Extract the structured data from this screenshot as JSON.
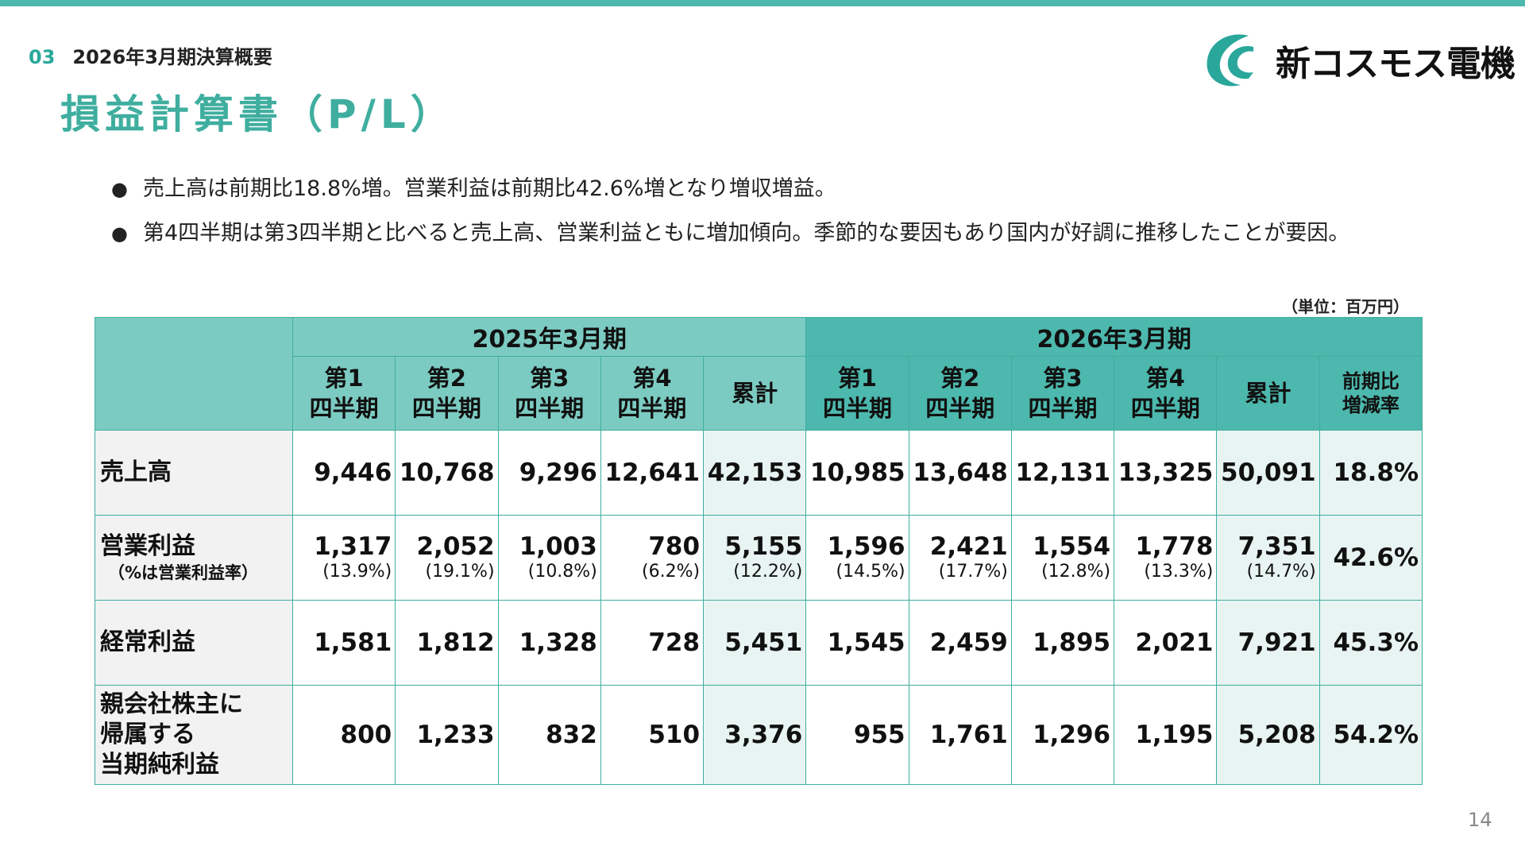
{
  "header": {
    "section_number": "03",
    "section_title": "2026年3月期決算概要",
    "page_title": "損益計算書（P/L）",
    "company_name": "新コスモス電機",
    "brand_color": "#4db8ad"
  },
  "bullets": [
    "売上高は前期比18.8%増。営業利益は前期比42.6%増となり増収増益。",
    "第4四半期は第3四半期と比べると売上高、営業利益ともに増加傾向。季節的な要因もあり国内が好調に推移したことが要因。"
  ],
  "unit_note": "（単位：百万円）",
  "table": {
    "period_headers": [
      "2025年3月期",
      "2026年3月期"
    ],
    "column_headers": [
      [
        "第1",
        "四半期"
      ],
      [
        "第2",
        "四半期"
      ],
      [
        "第3",
        "四半期"
      ],
      [
        "第4",
        "四半期"
      ],
      [
        "累計"
      ],
      [
        "第1",
        "四半期"
      ],
      [
        "第2",
        "四半期"
      ],
      [
        "第3",
        "四半期"
      ],
      [
        "第4",
        "四半期"
      ],
      [
        "累計"
      ],
      [
        "前期比",
        "増減率"
      ]
    ],
    "rows": [
      {
        "label": [
          "売上高"
        ],
        "sublabel": "",
        "values": [
          "9,446",
          "10,768",
          "9,296",
          "12,641",
          "42,153",
          "10,985",
          "13,648",
          "12,131",
          "13,325",
          "50,091",
          "18.8%"
        ],
        "margins": []
      },
      {
        "label": [
          "営業利益"
        ],
        "sublabel": "（%は営業利益率）",
        "values": [
          "1,317",
          "2,052",
          "1,003",
          "780",
          "5,155",
          "1,596",
          "2,421",
          "1,554",
          "1,778",
          "7,351",
          "42.6%"
        ],
        "margins": [
          "(13.9%)",
          "(19.1%)",
          "(10.8%)",
          "(6.2%)",
          "(12.2%)",
          "(14.5%)",
          "(17.7%)",
          "(12.8%)",
          "(13.3%)",
          "(14.7%)"
        ]
      },
      {
        "label": [
          "経常利益"
        ],
        "sublabel": "",
        "values": [
          "1,581",
          "1,812",
          "1,328",
          "728",
          "5,451",
          "1,545",
          "2,459",
          "1,895",
          "2,021",
          "7,921",
          "45.3%"
        ],
        "margins": []
      },
      {
        "label": [
          "親会社株主に",
          "帰属する",
          "当期純利益"
        ],
        "sublabel": "",
        "values": [
          "800",
          "1,233",
          "832",
          "510",
          "3,376",
          "955",
          "1,761",
          "1,296",
          "1,195",
          "5,208",
          "54.2%"
        ],
        "margins": []
      }
    ]
  },
  "page_number": "14"
}
